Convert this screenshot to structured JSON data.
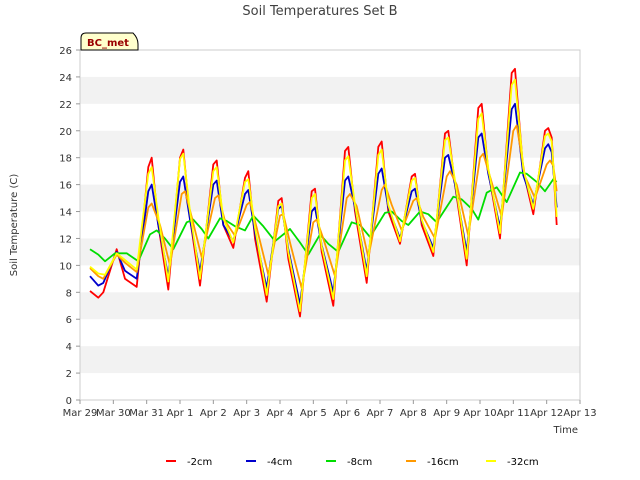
{
  "chart_data": {
    "type": "line",
    "title": "Soil Temperatures Set B",
    "xlabel": "Time",
    "ylabel": "Soil Temperature (C)",
    "badge": "BC_met",
    "ylim": [
      0,
      26
    ],
    "yticks": [
      0,
      2,
      4,
      6,
      8,
      10,
      12,
      14,
      16,
      18,
      20,
      22,
      24,
      26
    ],
    "xlim": [
      0,
      15
    ],
    "xtick_labels": [
      "Mar 29",
      "Mar 30",
      "Mar 31",
      "Apr 1",
      "Apr 2",
      "Apr 3",
      "Apr 4",
      "Apr 5",
      "Apr 6",
      "Apr 7",
      "Apr 8",
      "Apr 9",
      "Apr 10",
      "Apr 11",
      "Apr 12",
      "Apr 13"
    ],
    "grid": "horizontal bands",
    "legend_position": "bottom",
    "series": [
      {
        "name": "-2cm",
        "color": "#ff0000",
        "points": [
          [
            0.3,
            8.1
          ],
          [
            0.55,
            7.6
          ],
          [
            0.7,
            8.0
          ],
          [
            1.1,
            11.2
          ],
          [
            1.35,
            9.0
          ],
          [
            1.7,
            8.4
          ],
          [
            2.05,
            17.3
          ],
          [
            2.15,
            18.0
          ],
          [
            2.35,
            13.0
          ],
          [
            2.65,
            8.2
          ],
          [
            3.0,
            18.0
          ],
          [
            3.1,
            18.6
          ],
          [
            3.3,
            13.5
          ],
          [
            3.6,
            8.5
          ],
          [
            4.0,
            17.5
          ],
          [
            4.1,
            17.8
          ],
          [
            4.3,
            13.0
          ],
          [
            4.6,
            11.3
          ],
          [
            4.95,
            16.5
          ],
          [
            5.05,
            17.0
          ],
          [
            5.25,
            12.0
          ],
          [
            5.6,
            7.3
          ],
          [
            5.95,
            14.8
          ],
          [
            6.05,
            15.0
          ],
          [
            6.25,
            10.5
          ],
          [
            6.6,
            6.2
          ],
          [
            6.95,
            15.5
          ],
          [
            7.05,
            15.7
          ],
          [
            7.25,
            11.0
          ],
          [
            7.6,
            7.0
          ],
          [
            7.95,
            18.5
          ],
          [
            8.05,
            18.8
          ],
          [
            8.25,
            14.0
          ],
          [
            8.6,
            8.7
          ],
          [
            8.95,
            18.8
          ],
          [
            9.05,
            19.2
          ],
          [
            9.25,
            14.0
          ],
          [
            9.6,
            11.6
          ],
          [
            9.95,
            16.6
          ],
          [
            10.05,
            16.8
          ],
          [
            10.25,
            13.0
          ],
          [
            10.6,
            10.7
          ],
          [
            10.95,
            19.8
          ],
          [
            11.05,
            20.0
          ],
          [
            11.25,
            16.0
          ],
          [
            11.6,
            10.0
          ],
          [
            11.95,
            21.7
          ],
          [
            12.05,
            22.0
          ],
          [
            12.25,
            17.0
          ],
          [
            12.6,
            12.0
          ],
          [
            12.95,
            24.3
          ],
          [
            13.05,
            24.6
          ],
          [
            13.3,
            17.0
          ],
          [
            13.6,
            13.8
          ],
          [
            13.95,
            20.0
          ],
          [
            14.05,
            20.2
          ],
          [
            14.15,
            19.5
          ],
          [
            14.3,
            13.0
          ]
        ]
      },
      {
        "name": "-4cm",
        "color": "#0000cc",
        "points": [
          [
            0.3,
            9.2
          ],
          [
            0.55,
            8.5
          ],
          [
            0.7,
            8.7
          ],
          [
            1.1,
            11.0
          ],
          [
            1.35,
            9.6
          ],
          [
            1.7,
            9.0
          ],
          [
            2.05,
            15.5
          ],
          [
            2.15,
            16.0
          ],
          [
            2.35,
            13.0
          ],
          [
            2.65,
            9.2
          ],
          [
            3.0,
            16.2
          ],
          [
            3.1,
            16.6
          ],
          [
            3.3,
            13.4
          ],
          [
            3.6,
            9.5
          ],
          [
            4.0,
            16.0
          ],
          [
            4.1,
            16.3
          ],
          [
            4.3,
            13.0
          ],
          [
            4.6,
            11.8
          ],
          [
            4.95,
            15.3
          ],
          [
            5.05,
            15.6
          ],
          [
            5.25,
            12.4
          ],
          [
            5.6,
            8.3
          ],
          [
            5.95,
            14.2
          ],
          [
            6.05,
            14.4
          ],
          [
            6.25,
            11.2
          ],
          [
            6.6,
            7.1
          ],
          [
            6.95,
            14.0
          ],
          [
            7.05,
            14.3
          ],
          [
            7.25,
            11.5
          ],
          [
            7.6,
            8.0
          ],
          [
            7.95,
            16.3
          ],
          [
            8.05,
            16.6
          ],
          [
            8.25,
            14.3
          ],
          [
            8.6,
            9.6
          ],
          [
            8.95,
            16.8
          ],
          [
            9.05,
            17.2
          ],
          [
            9.25,
            14.3
          ],
          [
            9.6,
            12.0
          ],
          [
            9.95,
            15.5
          ],
          [
            10.05,
            15.7
          ],
          [
            10.25,
            13.3
          ],
          [
            10.6,
            11.3
          ],
          [
            10.95,
            18.0
          ],
          [
            11.05,
            18.2
          ],
          [
            11.25,
            16.0
          ],
          [
            11.6,
            11.0
          ],
          [
            11.95,
            19.5
          ],
          [
            12.05,
            19.8
          ],
          [
            12.25,
            16.8
          ],
          [
            12.6,
            12.8
          ],
          [
            12.95,
            21.6
          ],
          [
            13.05,
            22.0
          ],
          [
            13.3,
            16.7
          ],
          [
            13.6,
            14.5
          ],
          [
            13.95,
            18.7
          ],
          [
            14.05,
            19.0
          ],
          [
            14.15,
            18.4
          ],
          [
            14.3,
            14.3
          ]
        ]
      },
      {
        "name": "-8cm",
        "color": "#00dd00",
        "points": [
          [
            0.3,
            11.2
          ],
          [
            0.55,
            10.8
          ],
          [
            0.75,
            10.3
          ],
          [
            1.05,
            10.9
          ],
          [
            1.4,
            10.9
          ],
          [
            1.75,
            10.3
          ],
          [
            2.1,
            12.3
          ],
          [
            2.3,
            12.6
          ],
          [
            2.55,
            12.0
          ],
          [
            2.8,
            11.2
          ],
          [
            3.2,
            13.2
          ],
          [
            3.4,
            13.4
          ],
          [
            3.65,
            12.7
          ],
          [
            3.85,
            12.0
          ],
          [
            4.2,
            13.5
          ],
          [
            4.4,
            13.3
          ],
          [
            4.65,
            12.9
          ],
          [
            4.95,
            12.6
          ],
          [
            5.2,
            13.7
          ],
          [
            5.5,
            12.9
          ],
          [
            5.85,
            11.8
          ],
          [
            6.3,
            12.7
          ],
          [
            6.6,
            11.7
          ],
          [
            6.85,
            10.8
          ],
          [
            7.2,
            12.3
          ],
          [
            7.45,
            11.6
          ],
          [
            7.75,
            11.0
          ],
          [
            8.15,
            13.2
          ],
          [
            8.4,
            13.0
          ],
          [
            8.7,
            12.1
          ],
          [
            9.15,
            13.9
          ],
          [
            9.35,
            14.0
          ],
          [
            9.65,
            13.3
          ],
          [
            9.85,
            13.0
          ],
          [
            10.2,
            14.0
          ],
          [
            10.45,
            13.8
          ],
          [
            10.7,
            13.2
          ],
          [
            11.2,
            15.1
          ],
          [
            11.45,
            14.9
          ],
          [
            11.75,
            14.2
          ],
          [
            11.95,
            13.4
          ],
          [
            12.2,
            15.4
          ],
          [
            12.5,
            15.8
          ],
          [
            12.8,
            14.7
          ],
          [
            13.2,
            16.9
          ],
          [
            13.4,
            16.8
          ],
          [
            13.7,
            16.2
          ],
          [
            13.95,
            15.5
          ],
          [
            14.2,
            16.4
          ],
          [
            14.3,
            16.2
          ]
        ]
      },
      {
        "name": "-16cm",
        "color": "#ff9900",
        "points": [
          [
            0.3,
            9.8
          ],
          [
            0.55,
            9.2
          ],
          [
            0.7,
            9.0
          ],
          [
            1.1,
            10.8
          ],
          [
            1.35,
            10.2
          ],
          [
            1.7,
            9.5
          ],
          [
            2.05,
            14.3
          ],
          [
            2.15,
            14.6
          ],
          [
            2.4,
            13.0
          ],
          [
            2.7,
            10.0
          ],
          [
            3.05,
            15.3
          ],
          [
            3.15,
            15.5
          ],
          [
            3.35,
            13.6
          ],
          [
            3.65,
            10.6
          ],
          [
            4.05,
            15.0
          ],
          [
            4.15,
            15.2
          ],
          [
            4.35,
            13.3
          ],
          [
            4.65,
            12.2
          ],
          [
            5.0,
            14.5
          ],
          [
            5.1,
            14.7
          ],
          [
            5.3,
            12.8
          ],
          [
            5.65,
            9.3
          ],
          [
            6.0,
            13.7
          ],
          [
            6.1,
            13.8
          ],
          [
            6.3,
            11.7
          ],
          [
            6.65,
            8.3
          ],
          [
            7.0,
            13.2
          ],
          [
            7.1,
            13.4
          ],
          [
            7.3,
            12.0
          ],
          [
            7.65,
            9.2
          ],
          [
            8.0,
            15.0
          ],
          [
            8.1,
            15.3
          ],
          [
            8.3,
            14.4
          ],
          [
            8.65,
            10.6
          ],
          [
            9.05,
            15.6
          ],
          [
            9.15,
            16.0
          ],
          [
            9.35,
            14.5
          ],
          [
            9.65,
            12.6
          ],
          [
            10.0,
            14.8
          ],
          [
            10.1,
            15.0
          ],
          [
            10.3,
            13.6
          ],
          [
            10.65,
            12.0
          ],
          [
            11.0,
            16.6
          ],
          [
            11.1,
            17.0
          ],
          [
            11.3,
            16.0
          ],
          [
            11.65,
            12.2
          ],
          [
            12.0,
            18.0
          ],
          [
            12.1,
            18.3
          ],
          [
            12.3,
            16.6
          ],
          [
            12.65,
            13.6
          ],
          [
            13.0,
            20.0
          ],
          [
            13.1,
            20.4
          ],
          [
            13.35,
            16.6
          ],
          [
            13.65,
            15.0
          ],
          [
            14.0,
            17.5
          ],
          [
            14.1,
            17.8
          ],
          [
            14.2,
            17.4
          ],
          [
            14.3,
            15.5
          ]
        ]
      },
      {
        "name": "-32cm",
        "color": "#ffff00",
        "points": [
          [
            0.3,
            9.9
          ],
          [
            0.55,
            9.4
          ],
          [
            0.75,
            9.3
          ],
          [
            1.1,
            10.9
          ],
          [
            1.35,
            10.4
          ],
          [
            1.7,
            9.7
          ],
          [
            2.05,
            16.8
          ],
          [
            2.15,
            17.3
          ],
          [
            2.35,
            13.6
          ],
          [
            2.65,
            8.8
          ],
          [
            3.0,
            17.9
          ],
          [
            3.1,
            18.3
          ],
          [
            3.3,
            14.0
          ],
          [
            3.6,
            9.0
          ],
          [
            4.0,
            17.0
          ],
          [
            4.1,
            17.3
          ],
          [
            4.3,
            13.5
          ],
          [
            4.6,
            11.7
          ],
          [
            4.95,
            16.2
          ],
          [
            5.05,
            16.4
          ],
          [
            5.25,
            12.8
          ],
          [
            5.6,
            7.8
          ],
          [
            5.95,
            14.4
          ],
          [
            6.05,
            14.6
          ],
          [
            6.25,
            11.0
          ],
          [
            6.6,
            6.6
          ],
          [
            6.95,
            15.0
          ],
          [
            7.05,
            15.3
          ],
          [
            7.25,
            11.4
          ],
          [
            7.6,
            7.5
          ],
          [
            7.95,
            17.8
          ],
          [
            8.05,
            18.1
          ],
          [
            8.25,
            14.5
          ],
          [
            8.6,
            9.2
          ],
          [
            8.95,
            18.2
          ],
          [
            9.05,
            18.6
          ],
          [
            9.25,
            14.5
          ],
          [
            9.6,
            11.8
          ],
          [
            9.95,
            16.3
          ],
          [
            10.05,
            16.5
          ],
          [
            10.25,
            13.4
          ],
          [
            10.6,
            11.0
          ],
          [
            10.95,
            19.3
          ],
          [
            11.05,
            19.5
          ],
          [
            11.25,
            16.3
          ],
          [
            11.6,
            10.5
          ],
          [
            11.95,
            20.9
          ],
          [
            12.05,
            21.3
          ],
          [
            12.25,
            17.2
          ],
          [
            12.6,
            12.4
          ],
          [
            12.95,
            23.4
          ],
          [
            13.05,
            23.8
          ],
          [
            13.3,
            17.2
          ],
          [
            13.6,
            14.2
          ],
          [
            13.95,
            19.6
          ],
          [
            14.05,
            19.8
          ],
          [
            14.15,
            19.2
          ],
          [
            14.3,
            13.6
          ]
        ]
      }
    ]
  }
}
